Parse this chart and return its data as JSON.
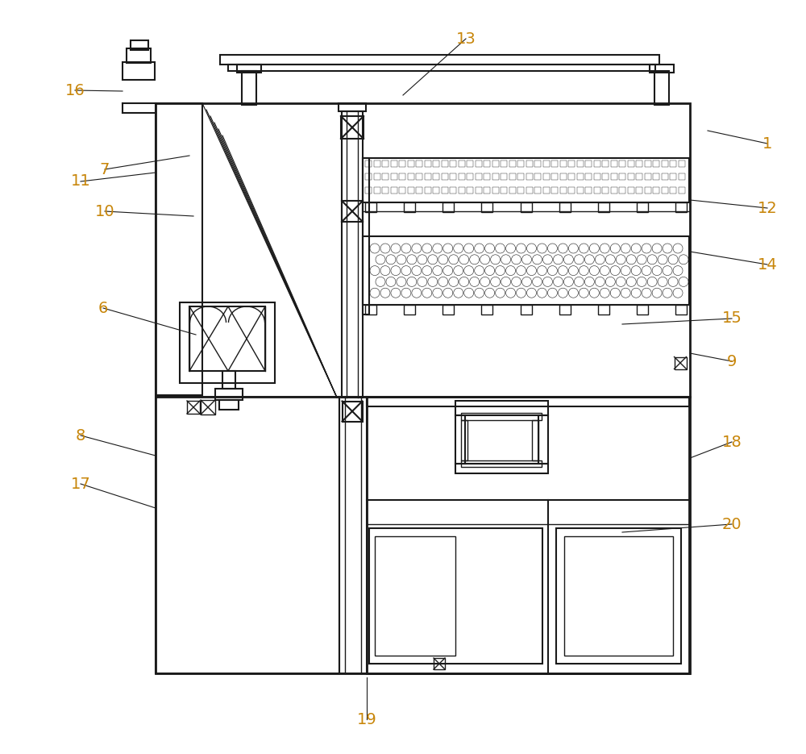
{
  "bg_color": "#ffffff",
  "line_color": "#1a1a1a",
  "label_color": "#c8860a",
  "fig_width": 10.0,
  "fig_height": 9.35,
  "label_data": [
    [
      "1",
      952,
      178,
      878,
      162
    ],
    [
      "6",
      128,
      382,
      243,
      415
    ],
    [
      "7",
      130,
      210,
      235,
      193
    ],
    [
      "8",
      100,
      540,
      193,
      565
    ],
    [
      "9",
      908,
      448,
      856,
      438
    ],
    [
      "10",
      130,
      262,
      240,
      268
    ],
    [
      "11",
      100,
      225,
      193,
      214
    ],
    [
      "12",
      952,
      258,
      856,
      248
    ],
    [
      "13",
      578,
      48,
      500,
      118
    ],
    [
      "14",
      952,
      328,
      856,
      312
    ],
    [
      "15",
      908,
      395,
      772,
      402
    ],
    [
      "16",
      93,
      112,
      152,
      113
    ],
    [
      "17",
      100,
      600,
      193,
      630
    ],
    [
      "18",
      908,
      548,
      856,
      568
    ],
    [
      "19",
      455,
      892,
      455,
      840
    ],
    [
      "20",
      908,
      650,
      772,
      660
    ]
  ]
}
